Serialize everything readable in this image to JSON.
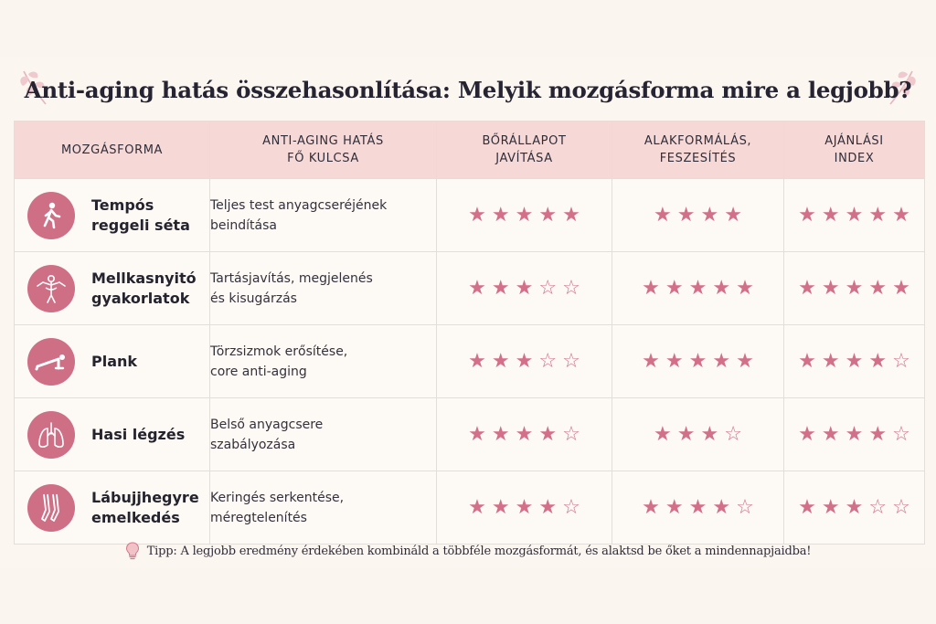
{
  "title": "Anti-aging hatás összehasonlítása: Melyik mozgásforma mire a legjobb?",
  "columns": {
    "exercise": "MOZGÁSFORMA",
    "effect": [
      "ANTI-AGING HATÁS",
      "FŐ KULCSA"
    ],
    "skin": [
      "BŐRÁLLAPOT",
      "JAVÍTÁSA"
    ],
    "shape": [
      "ALAKFORMÁLÁS,",
      "FESZESÍTÉS"
    ],
    "index": [
      "AJÁNLÁSI",
      "INDEX"
    ]
  },
  "rows": [
    {
      "name": [
        "Tempós",
        "reggeli séta"
      ],
      "icon": "walking-person-icon",
      "effect": [
        "Teljes test anyagcseréjének",
        "beindítása"
      ],
      "skin": 5,
      "shape": 4,
      "shape_total": 4,
      "index": 5
    },
    {
      "name": [
        "Mellkasnyitó",
        "gyakorlatok"
      ],
      "icon": "chest-opening-icon",
      "effect": [
        "Tartásjavítás, megjelenés",
        "és kisugárzás"
      ],
      "skin": 3,
      "shape": 5,
      "shape_total": 5,
      "index": 5
    },
    {
      "name": [
        "Plank",
        ""
      ],
      "icon": "plank-icon",
      "effect": [
        "Törzsizmok erősítése,",
        "core anti-aging"
      ],
      "skin": 3,
      "shape": 5,
      "shape_total": 5,
      "index": 4
    },
    {
      "name": [
        "Hasi légzés",
        ""
      ],
      "icon": "lungs-icon",
      "effect": [
        "Belső anyagcsere",
        "szabályozása"
      ],
      "skin": 4,
      "shape": 3,
      "shape_total": 4,
      "index": 4
    },
    {
      "name": [
        "Lábujjhegyre",
        "emelkedés"
      ],
      "icon": "tiptoe-feet-icon",
      "effect": [
        "Keringés serkentése,",
        "méregtelenítés"
      ],
      "skin": 4,
      "shape": 4,
      "shape_total": 5,
      "index": 3
    }
  ],
  "tip": "Tipp: A legjobb eredmény érdekében kombináld a többféle mozgásformát, és alaktsd be őket a mindennapjaidba!",
  "colors": {
    "accent": "#cf6f86",
    "header_bg": "#f6d9d6",
    "page_bg": "#fbf5f0"
  }
}
